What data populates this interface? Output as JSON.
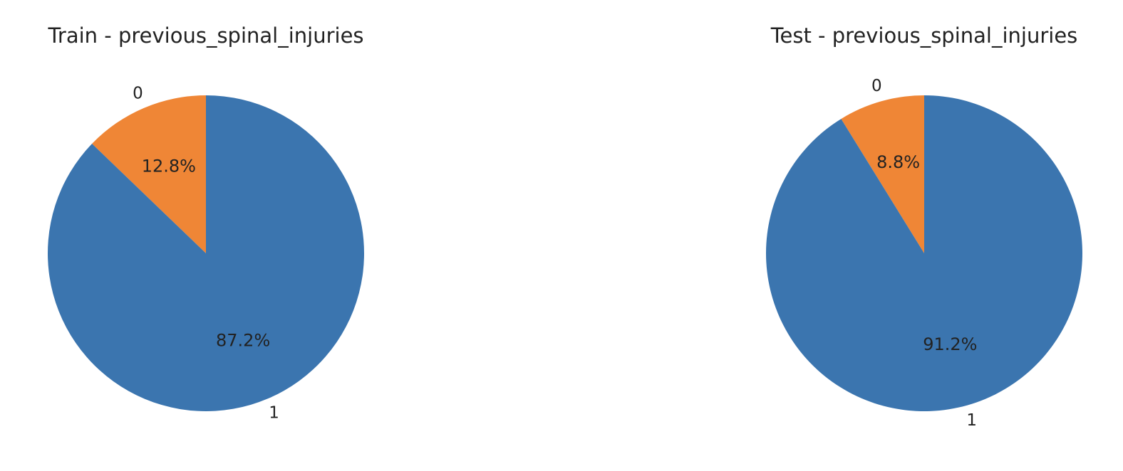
{
  "chart_data": [
    {
      "type": "pie",
      "title": "Train - previous_spinal_injuries",
      "categories": [
        "0",
        "1"
      ],
      "values": [
        12.8,
        87.2
      ],
      "value_labels": [
        "12.8%",
        "87.2%"
      ],
      "colors": [
        "#ef8636",
        "#3b75af"
      ]
    },
    {
      "type": "pie",
      "title": "Test - previous_spinal_injuries",
      "categories": [
        "0",
        "1"
      ],
      "values": [
        8.8,
        91.2
      ],
      "value_labels": [
        "8.8%",
        "91.2%"
      ],
      "colors": [
        "#ef8636",
        "#3b75af"
      ]
    }
  ]
}
